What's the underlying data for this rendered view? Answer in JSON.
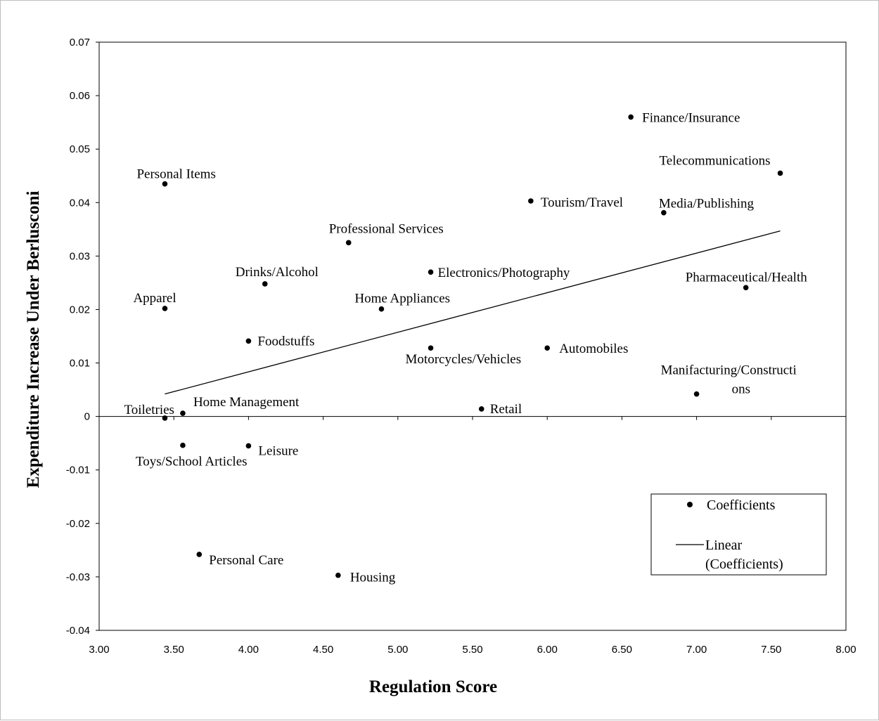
{
  "chart_data": {
    "type": "scatter",
    "title": "",
    "xlabel": "Regulation Score",
    "ylabel": "Expenditure Increase Under Berlusconi",
    "xlim": [
      3.0,
      8.0
    ],
    "ylim": [
      -0.04,
      0.07
    ],
    "x_ticks": [
      "3.00",
      "3.50",
      "4.00",
      "4.50",
      "5.00",
      "5.50",
      "6.00",
      "6.50",
      "7.00",
      "7.50",
      "8.00"
    ],
    "y_ticks": [
      "-0.04",
      "-0.03",
      "-0.02",
      "-0.01",
      "0",
      "0.01",
      "0.02",
      "0.03",
      "0.04",
      "0.05",
      "0.06",
      "0.07"
    ],
    "grid": false,
    "legend_position": "bottom-right",
    "legend": [
      "Coefficients",
      "Linear",
      "(Coefficients)"
    ],
    "points": [
      {
        "label": "Finance/Insurance",
        "x": 6.56,
        "y": 0.056
      },
      {
        "label": "Telecommunications",
        "x": 7.56,
        "y": 0.0455
      },
      {
        "label": "Personal Items",
        "x": 3.44,
        "y": 0.0435
      },
      {
        "label": "Tourism/Travel",
        "x": 5.89,
        "y": 0.0403
      },
      {
        "label": "Media/Publishing",
        "x": 6.78,
        "y": 0.0381
      },
      {
        "label": "Professional Services",
        "x": 4.67,
        "y": 0.0325
      },
      {
        "label": "Electronics/Photography",
        "x": 5.22,
        "y": 0.027
      },
      {
        "label": "Drinks/Alcohol",
        "x": 4.11,
        "y": 0.0248
      },
      {
        "label": "Pharmaceutical/Health",
        "x": 7.33,
        "y": 0.0241
      },
      {
        "label": "Apparel",
        "x": 3.44,
        "y": 0.0202
      },
      {
        "label": "Home Appliances",
        "x": 4.89,
        "y": 0.0201
      },
      {
        "label": "Foodstuffs",
        "x": 4.0,
        "y": 0.0141
      },
      {
        "label": "Motorcycles/Vehicles",
        "x": 5.22,
        "y": 0.0128
      },
      {
        "label": "Automobiles",
        "x": 6.0,
        "y": 0.0128
      },
      {
        "label": "Manifacturing/Constructi",
        "label2": "ons",
        "x": 7.0,
        "y": 0.0042
      },
      {
        "label": "Retail",
        "x": 5.56,
        "y": 0.0014
      },
      {
        "label": "Home Management",
        "x": 3.56,
        "y": 0.0006
      },
      {
        "label": "Toiletries",
        "x": 3.44,
        "y": -0.0003
      },
      {
        "label": "Toys/School Articles",
        "x": 3.56,
        "y": -0.0054
      },
      {
        "label": "Leisure",
        "x": 4.0,
        "y": -0.0055
      },
      {
        "label": "Personal Care",
        "x": 3.67,
        "y": -0.0258
      },
      {
        "label": "Housing",
        "x": 4.6,
        "y": -0.0297
      }
    ],
    "trendline": {
      "x": [
        3.44,
        7.56
      ],
      "y": [
        0.0042,
        0.0347
      ]
    }
  }
}
